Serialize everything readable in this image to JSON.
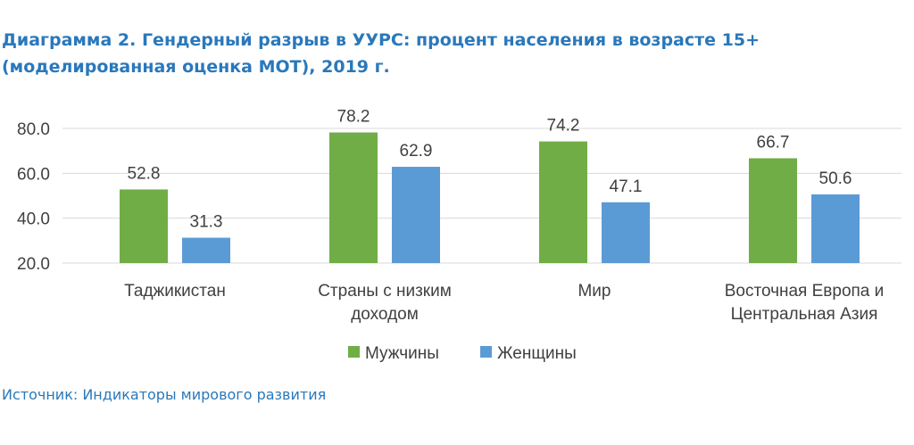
{
  "title": {
    "line1": "Диаграмма 2. Гендерный разрыв в УУРС: процент населения в возрасте 15+",
    "line2": "(моделированная оценка МОТ), 2019 г."
  },
  "source": "Источник: Индикаторы мирового развития",
  "colors": {
    "men": "#70ad47",
    "women": "#5b9bd5",
    "grid": "#d9d9d9",
    "text": "#404040",
    "title": "#2a78bb"
  },
  "chart_data": {
    "type": "bar",
    "categories": [
      [
        "Таджикистан"
      ],
      [
        "Страны с низким",
        "доходом"
      ],
      [
        "Мир"
      ],
      [
        "Восточная Европа и",
        "Центральная Азия"
      ]
    ],
    "series": [
      {
        "name": "Мужчины",
        "values": [
          52.8,
          78.2,
          74.2,
          66.7
        ]
      },
      {
        "name": "Женщины",
        "values": [
          31.3,
          62.9,
          47.1,
          50.6
        ]
      }
    ],
    "value_labels": [
      [
        "52.8",
        "78.2",
        "74.2",
        "66.7"
      ],
      [
        "31.3",
        "62.9",
        "47.1",
        "50.6"
      ]
    ],
    "yticks": [
      "20.0",
      "40.0",
      "60.0",
      "80.0"
    ],
    "ytick_values": [
      20,
      40,
      60,
      80
    ],
    "ylim": [
      20,
      80
    ],
    "grid": true,
    "legend_position": "bottom-center"
  }
}
